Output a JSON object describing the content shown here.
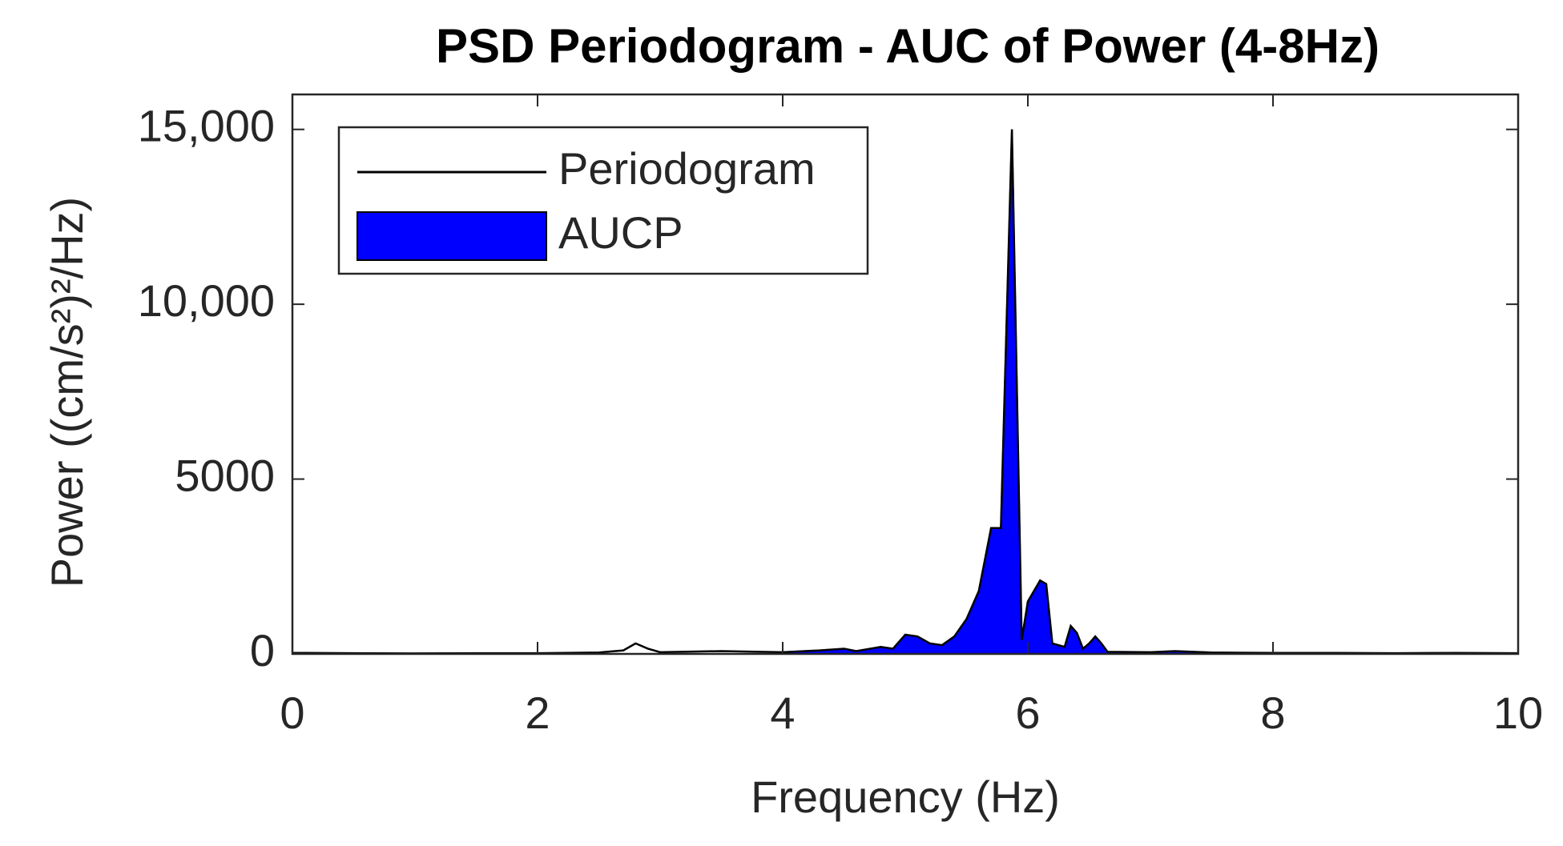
{
  "chart_data": {
    "type": "line",
    "title": "PSD Periodogram - AUC of Power (4-8Hz)",
    "x_label": "Frequency (Hz)",
    "y_label": "Power ((cm/s²)²/Hz)",
    "xlim": [
      0,
      10
    ],
    "xticks": [
      0,
      2,
      4,
      6,
      8,
      10
    ],
    "ylim": [
      0,
      16000
    ],
    "yticks": [
      0,
      5000,
      {
        "value": 10000,
        "label": "10,000"
      },
      {
        "value": 15000,
        "label": "15,000"
      }
    ],
    "legend": "northwest",
    "series": [
      {
        "name": "Periodogram",
        "type": "line",
        "color": "#000000",
        "x": [
          0,
          0.5,
          1,
          1.5,
          2,
          2.5,
          2.7,
          2.8,
          2.9,
          3.0,
          3.5,
          4,
          4.3,
          4.5,
          4.6,
          4.8,
          4.9,
          5.0,
          5.1,
          5.2,
          5.3,
          5.4,
          5.5,
          5.6,
          5.7,
          5.78,
          5.87,
          5.95,
          6.0,
          6.1,
          6.15,
          6.2,
          6.3,
          6.35,
          6.4,
          6.45,
          6.5,
          6.55,
          6.6,
          6.65,
          7,
          7.2,
          7.5,
          8,
          8.5,
          9,
          9.5,
          10
        ],
        "values": [
          30,
          20,
          15,
          20,
          20,
          40,
          100,
          300,
          150,
          50,
          80,
          50,
          100,
          150,
          80,
          200,
          150,
          550,
          500,
          300,
          250,
          500,
          1000,
          1800,
          3600,
          3600,
          15000,
          400,
          1500,
          2100,
          2000,
          300,
          200,
          800,
          600,
          150,
          300,
          500,
          300,
          60,
          50,
          80,
          40,
          30,
          30,
          20,
          30,
          20
        ]
      },
      {
        "name": "AUCP",
        "type": "area",
        "color": "#0000ff",
        "x": [
          4,
          4.3,
          4.5,
          4.6,
          4.8,
          4.9,
          5.0,
          5.1,
          5.2,
          5.3,
          5.4,
          5.5,
          5.6,
          5.7,
          5.78,
          5.87,
          5.95,
          6.0,
          6.1,
          6.15,
          6.2,
          6.3,
          6.35,
          6.4,
          6.45,
          6.5,
          6.55,
          6.6,
          6.65,
          7,
          7.2,
          7.5,
          8
        ],
        "values": [
          50,
          100,
          150,
          80,
          200,
          150,
          550,
          500,
          300,
          250,
          500,
          1000,
          1800,
          3600,
          3600,
          15000,
          400,
          1500,
          2100,
          2000,
          300,
          200,
          800,
          600,
          150,
          300,
          500,
          300,
          60,
          50,
          80,
          40,
          30
        ]
      }
    ]
  }
}
